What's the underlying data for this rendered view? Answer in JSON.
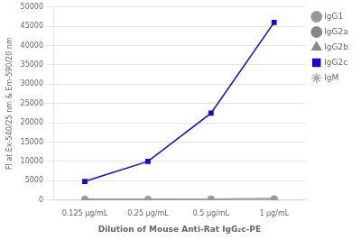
{
  "chart_data": {
    "type": "line",
    "xlabel": "Dilution of Mouse Anti-Rat IgG₂c-PE",
    "ylabel": "Fl at Ex-540/25 nm & Em-590/20 nm",
    "categories": [
      "0.125 μg/mL",
      "0.25 μg/mL",
      "0.5 μg/mL",
      "1 μg/mL"
    ],
    "series": [
      {
        "name": "IgG1",
        "color": "#999999",
        "marker": "circle",
        "values": [
          150,
          150,
          200,
          250
        ]
      },
      {
        "name": "IgG2a",
        "color": "#888888",
        "marker": "circle",
        "values": [
          150,
          150,
          200,
          250
        ]
      },
      {
        "name": "IgG2b",
        "color": "#888888",
        "marker": "triangle",
        "values": [
          150,
          150,
          200,
          250
        ]
      },
      {
        "name": "IgG2c",
        "color": "#2200cc",
        "marker": "square",
        "values": [
          4800,
          10000,
          22500,
          46000
        ]
      },
      {
        "name": "IgM",
        "color": "#aaaaaa",
        "marker": "star",
        "values": [
          150,
          150,
          200,
          250
        ]
      }
    ],
    "ylim": [
      0,
      50000
    ],
    "yticks": [
      0,
      5000,
      10000,
      15000,
      20000,
      25000,
      30000,
      35000,
      40000,
      45000,
      50000
    ],
    "grid": "y",
    "legend": "right"
  }
}
